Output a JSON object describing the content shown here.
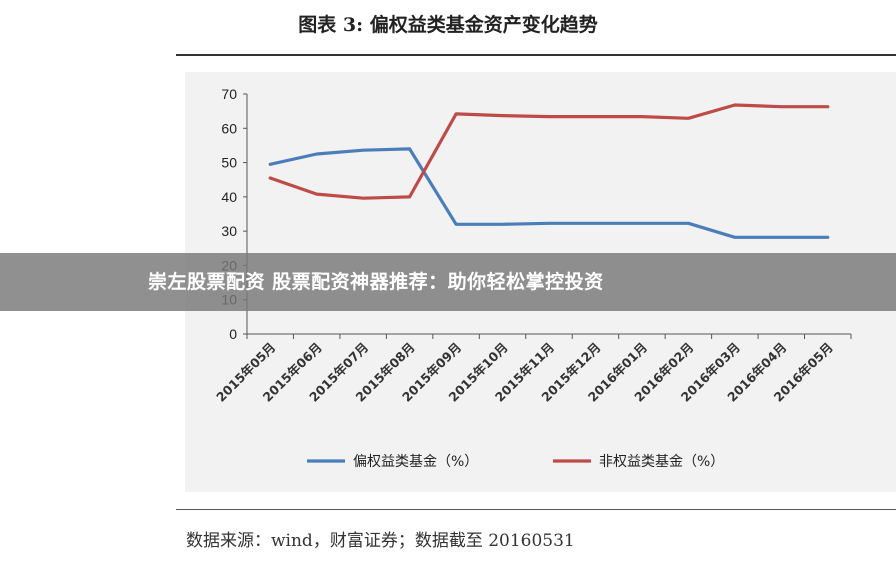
{
  "figure": {
    "title": "图表 3:  偏权益类基金资产变化趋势",
    "source": "数据来源：wind，财富证券；数据截至 20160531"
  },
  "banner": {
    "text": "崇左股票配资 股票配资神器推荐：助你轻松掌控投资"
  },
  "colors": {
    "series_blue": "#4a7ebb",
    "series_red": "#be4b48",
    "frame_bg": "#f2f2f2"
  },
  "chart_data": {
    "type": "line",
    "categories": [
      "2015年05月",
      "2015年06月",
      "2015年07月",
      "2015年08月",
      "2015年09月",
      "2015年10月",
      "2015年11月",
      "2015年12月",
      "2016年01月",
      "2016年02月",
      "2016年03月",
      "2016年04月",
      "2016年05月"
    ],
    "series": [
      {
        "name": "偏权益类基金（%）",
        "color": "#4a7ebb",
        "values": [
          49.5,
          52.5,
          53.6,
          54.0,
          32.0,
          32.0,
          32.3,
          32.3,
          32.3,
          32.3,
          28.2,
          28.2,
          28.2
        ]
      },
      {
        "name": "非权益类基金（%）",
        "color": "#be4b48",
        "values": [
          45.5,
          40.8,
          39.6,
          40.0,
          64.2,
          63.7,
          63.4,
          63.4,
          63.4,
          62.9,
          66.8,
          66.3,
          66.3
        ]
      }
    ],
    "ylim": [
      0,
      70
    ],
    "yticks": [
      0,
      10,
      20,
      30,
      40,
      50,
      60,
      70
    ],
    "grid": false,
    "legend": "bottom"
  }
}
